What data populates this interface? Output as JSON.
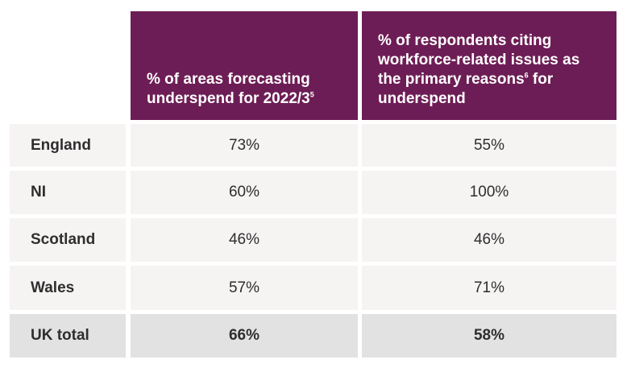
{
  "table": {
    "headers": [
      {
        "text": "% of areas forecasting underspend for 2022/3",
        "footnote": "5"
      },
      {
        "text": "% of respondents citing workforce-related issues as the primary reasons",
        "footnote": "6",
        "text_after": " for underspend"
      }
    ],
    "rows": [
      {
        "label": "England",
        "col1": "73%",
        "col2": "55%"
      },
      {
        "label": "NI",
        "col1": "60%",
        "col2": "100%"
      },
      {
        "label": "Scotland",
        "col1": "46%",
        "col2": "46%"
      },
      {
        "label": "Wales",
        "col1": "57%",
        "col2": "71%"
      },
      {
        "label": "UK total",
        "col1": "66%",
        "col2": "58%"
      }
    ]
  },
  "colors": {
    "header_bg": "#6d1d55",
    "row_bg": "#f6f3f3",
    "total_bg": "#e3e2e2"
  }
}
